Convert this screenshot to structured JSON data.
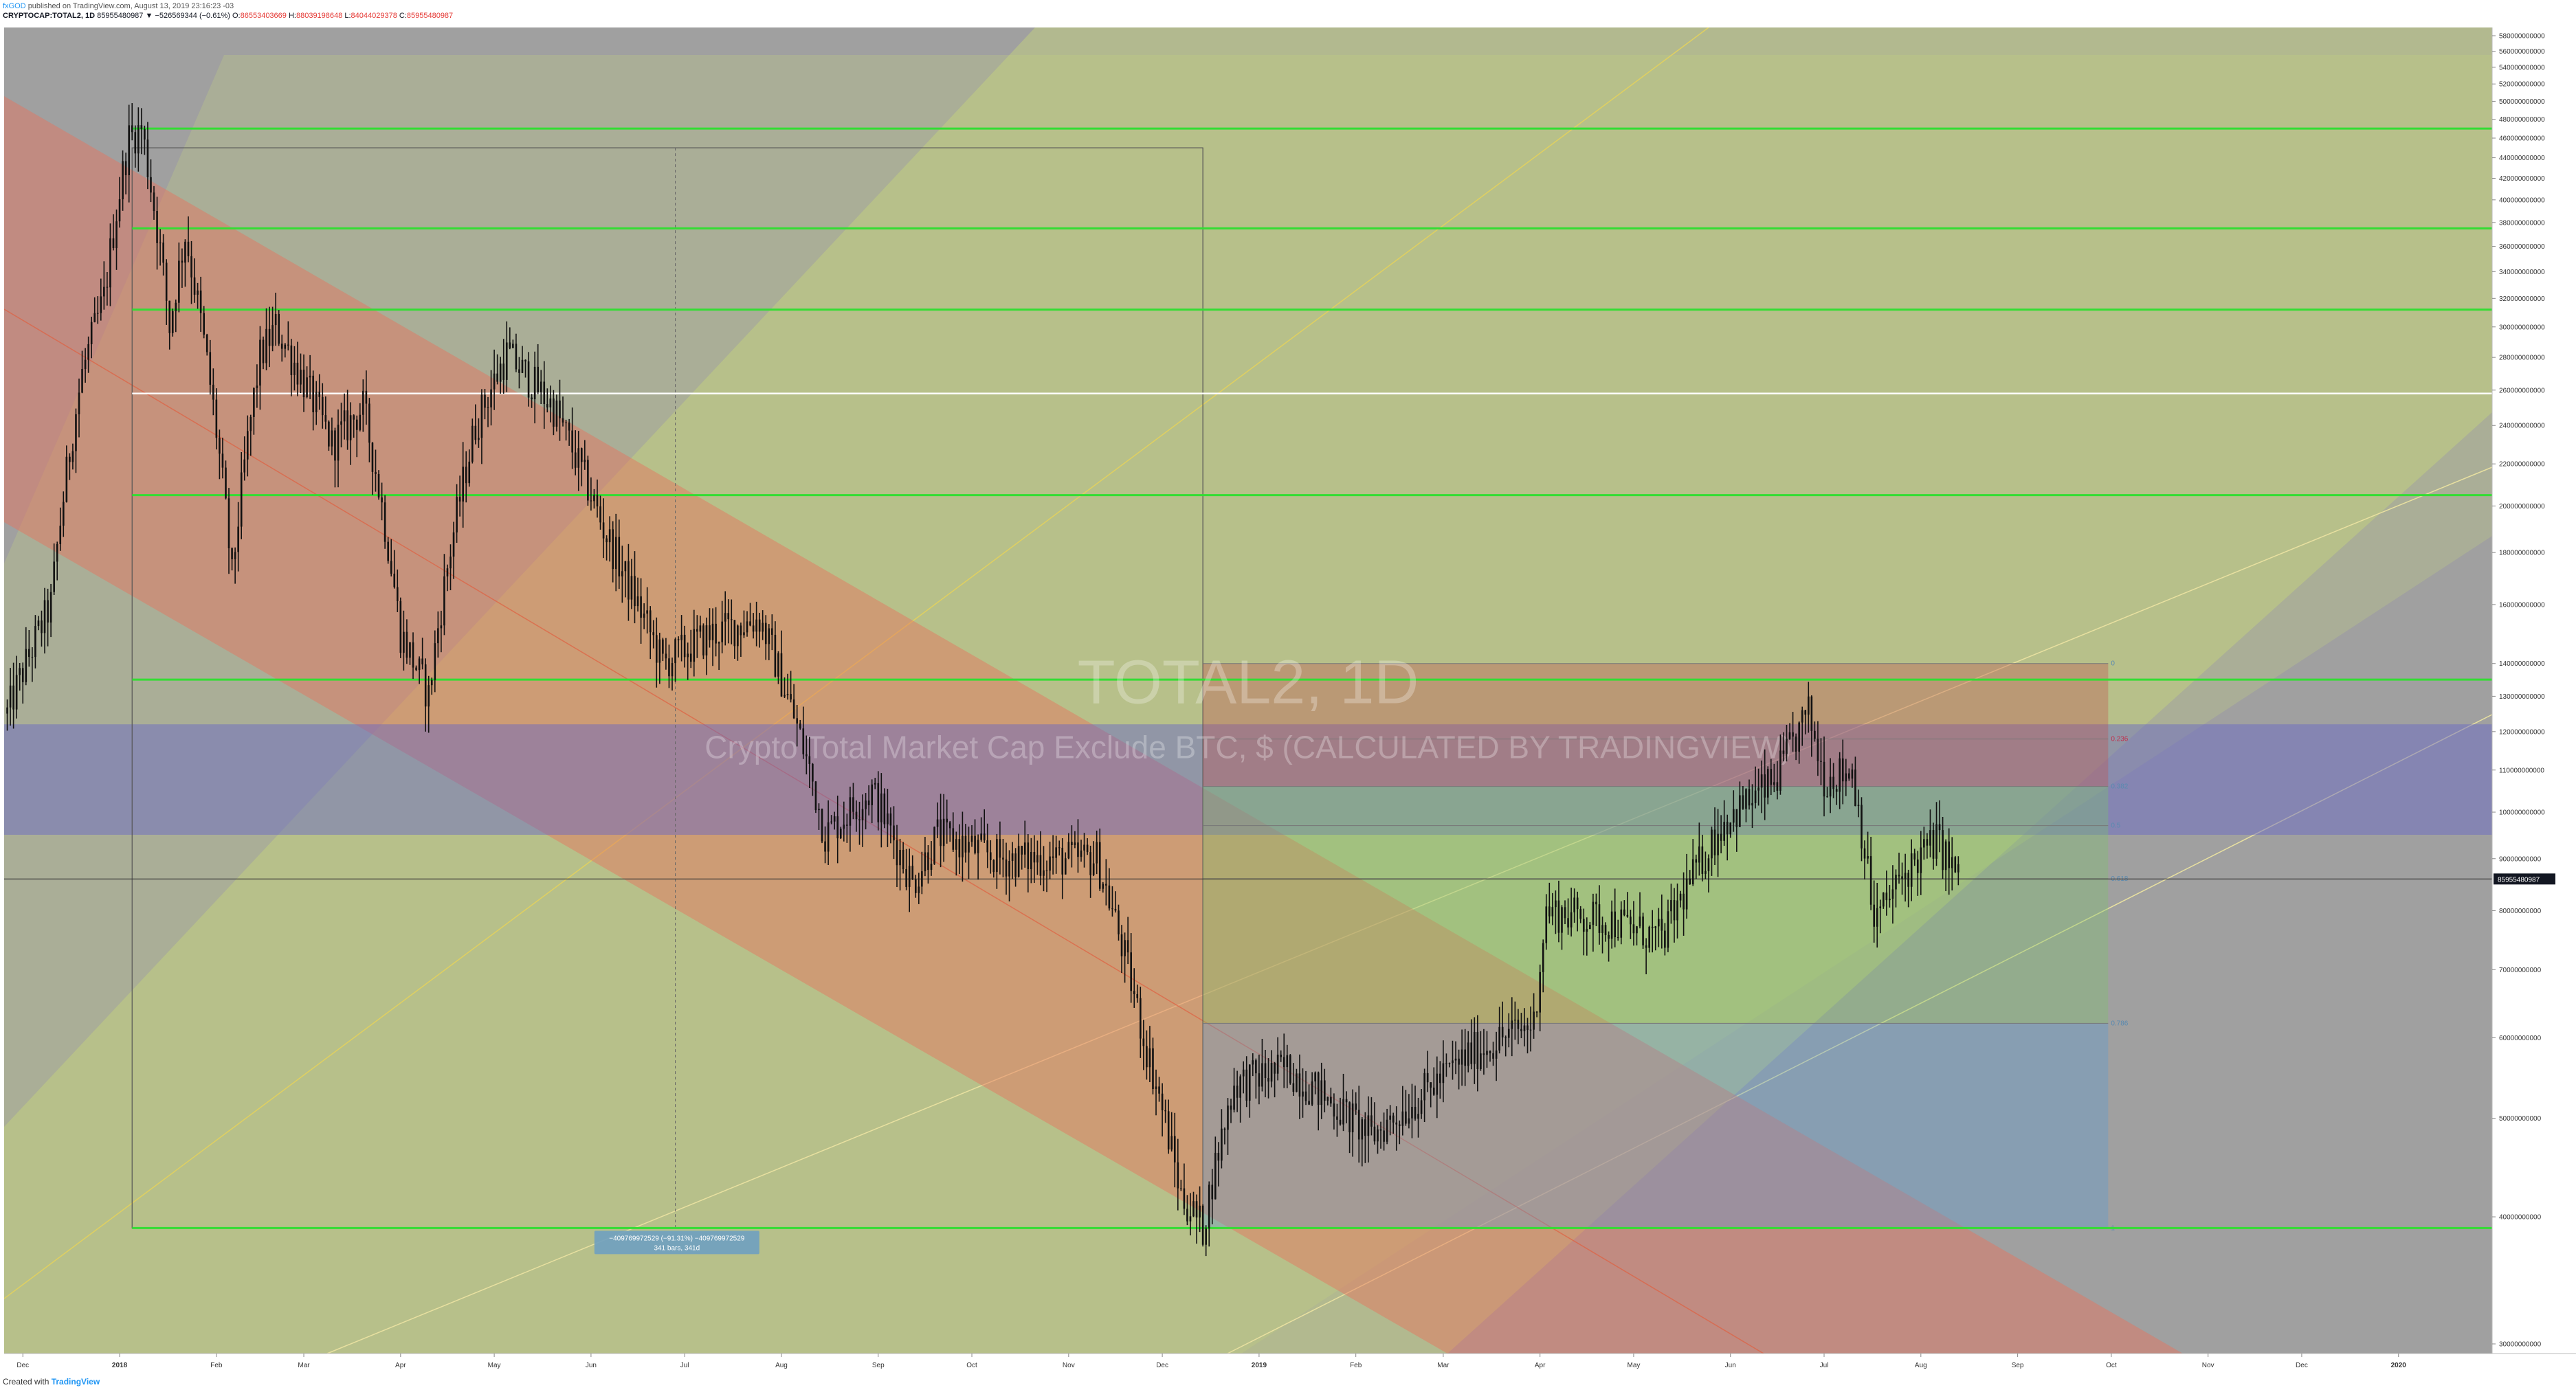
{
  "header": {
    "author": "fxGOD",
    "published": "published on TradingView.com, August 13, 2019 23:16:23 -03",
    "symbol": "CRYPTOCAP:TOTAL2, 1D",
    "price": "85955480987",
    "change": "▼ −526569344 (−0.61%)",
    "o_label": "O:",
    "o_value": "86553403669",
    "h_label": "H:",
    "h_value": "88039198648",
    "l_label": "L:",
    "l_value": "84044029378",
    "c_label": "C:",
    "c_value": "85955480987"
  },
  "watermark": {
    "title": "TOTAL2, 1D",
    "subtitle": "Crypto Total Market Cap Exclude BTC, $ (CALCULATED BY TRADINGVIEW)"
  },
  "footer": {
    "created_with": "Created with",
    "brand": "TradingView"
  },
  "colors": {
    "background": "#a0a0a0",
    "channel": "#e8705a",
    "pitchfork": "#c8d87a",
    "zone": "#6464c8",
    "hline": "#33dd33",
    "white_line": "#ffffff",
    "candle": "#111111",
    "fib_red": "#c0504d",
    "fib_green": "#7cc46a",
    "fib_blue": "#5a9bd4"
  },
  "chart_data": {
    "type": "candlestick",
    "y_scale": "log",
    "ylim": [
      300000000000,
      600000000000
    ],
    "y_ticks": [
      {
        "v": 580000000000,
        "label": "580000000000"
      },
      {
        "v": 560000000000,
        "label": "560000000000"
      },
      {
        "v": 540000000000,
        "label": "540000000000"
      },
      {
        "v": 520000000000,
        "label": "520000000000"
      },
      {
        "v": 500000000000,
        "label": "500000000000"
      },
      {
        "v": 480000000000,
        "label": "480000000000"
      },
      {
        "v": 460000000000,
        "label": "460000000000"
      },
      {
        "v": 440000000000,
        "label": "440000000000"
      },
      {
        "v": 420000000000,
        "label": "420000000000"
      },
      {
        "v": 400000000000,
        "label": "400000000000"
      },
      {
        "v": 380000000000,
        "label": "380000000000"
      },
      {
        "v": 360000000000,
        "label": "360000000000"
      },
      {
        "v": 340000000000,
        "label": "340000000000"
      },
      {
        "v": 320000000000,
        "label": "320000000000"
      },
      {
        "v": 300000000000,
        "label": "300000000000"
      },
      {
        "v": 280000000000,
        "label": "280000000000"
      },
      {
        "v": 260000000000,
        "label": "260000000000"
      },
      {
        "v": 240000000000,
        "label": "240000000000"
      },
      {
        "v": 220000000000,
        "label": "220000000000"
      },
      {
        "v": 200000000000,
        "label": "200000000000"
      },
      {
        "v": 180000000000,
        "label": "180000000000"
      },
      {
        "v": 160000000000,
        "label": "160000000000"
      },
      {
        "v": 140000000000,
        "label": "140000000000"
      },
      {
        "v": 130000000000,
        "label": "130000000000"
      },
      {
        "v": 120000000000,
        "label": "120000000000"
      },
      {
        "v": 110000000000,
        "label": "110000000000"
      },
      {
        "v": 100000000000,
        "label": "100000000000"
      },
      {
        "v": 90000000000,
        "label": "90000000000"
      },
      {
        "v": 80000000000,
        "label": "80000000000"
      },
      {
        "v": 70000000000,
        "label": "70000000000"
      },
      {
        "v": 60000000000,
        "label": "60000000000"
      },
      {
        "v": 50000000000,
        "label": "50000000000"
      },
      {
        "v": 40000000000,
        "label": "40000000000"
      },
      {
        "v": 30000000000,
        "label": "30000000000"
      }
    ],
    "x_ticks": [
      {
        "d": "2017-12-01",
        "label": "Dec"
      },
      {
        "d": "2018-01-01",
        "label": "2018"
      },
      {
        "d": "2018-02-01",
        "label": "Feb"
      },
      {
        "d": "2018-03-01",
        "label": "Mar"
      },
      {
        "d": "2018-04-01",
        "label": "Apr"
      },
      {
        "d": "2018-05-01",
        "label": "May"
      },
      {
        "d": "2018-06-01",
        "label": "Jun"
      },
      {
        "d": "2018-07-01",
        "label": "Jul"
      },
      {
        "d": "2018-08-01",
        "label": "Aug"
      },
      {
        "d": "2018-09-01",
        "label": "Sep"
      },
      {
        "d": "2018-10-01",
        "label": "Oct"
      },
      {
        "d": "2018-11-01",
        "label": "Nov"
      },
      {
        "d": "2018-12-01",
        "label": "Dec"
      },
      {
        "d": "2019-01-01",
        "label": "2019"
      },
      {
        "d": "2019-02-01",
        "label": "Feb"
      },
      {
        "d": "2019-03-01",
        "label": "Mar"
      },
      {
        "d": "2019-04-01",
        "label": "Apr"
      },
      {
        "d": "2019-05-01",
        "label": "May"
      },
      {
        "d": "2019-06-01",
        "label": "Jun"
      },
      {
        "d": "2019-07-01",
        "label": "Jul"
      },
      {
        "d": "2019-08-01",
        "label": "Aug"
      },
      {
        "d": "2019-09-01",
        "label": "Sep"
      },
      {
        "d": "2019-10-01",
        "label": "Oct"
      },
      {
        "d": "2019-11-01",
        "label": "Nov"
      },
      {
        "d": "2019-12-01",
        "label": "Dec"
      },
      {
        "d": "2020-01-01",
        "label": "2020"
      }
    ],
    "price_path": [
      [
        "2017-11-26",
        125
      ],
      [
        "2017-12-10",
        160
      ],
      [
        "2017-12-20",
        270
      ],
      [
        "2017-12-27",
        320
      ],
      [
        "2018-01-04",
        460
      ],
      [
        "2018-01-08",
        470
      ],
      [
        "2018-01-17",
        300
      ],
      [
        "2018-01-22",
        370
      ],
      [
        "2018-02-06",
        170
      ],
      [
        "2018-02-15",
        280
      ],
      [
        "2018-02-20",
        300
      ],
      [
        "2018-03-10",
        230
      ],
      [
        "2018-03-20",
        250
      ],
      [
        "2018-04-01",
        150
      ],
      [
        "2018-04-10",
        130
      ],
      [
        "2018-04-25",
        240
      ],
      [
        "2018-05-05",
        282
      ],
      [
        "2018-05-20",
        250
      ],
      [
        "2018-06-05",
        190
      ],
      [
        "2018-06-12",
        170
      ],
      [
        "2018-06-24",
        140
      ],
      [
        "2018-07-10",
        150
      ],
      [
        "2018-07-25",
        155
      ],
      [
        "2018-08-10",
        110
      ],
      [
        "2018-08-15",
        95
      ],
      [
        "2018-08-30",
        105
      ],
      [
        "2018-09-12",
        85
      ],
      [
        "2018-09-20",
        95
      ],
      [
        "2018-10-10",
        90
      ],
      [
        "2018-11-10",
        90
      ],
      [
        "2018-11-15",
        80
      ],
      [
        "2018-11-25",
        60
      ],
      [
        "2018-12-07",
        42
      ],
      [
        "2018-12-14",
        39
      ],
      [
        "2018-12-24",
        54
      ],
      [
        "2019-01-10",
        56
      ],
      [
        "2019-02-06",
        48
      ],
      [
        "2019-02-20",
        52
      ],
      [
        "2019-03-10",
        58
      ],
      [
        "2019-03-30",
        62
      ],
      [
        "2019-04-03",
        80
      ],
      [
        "2019-04-25",
        78
      ],
      [
        "2019-05-10",
        75
      ],
      [
        "2019-05-30",
        98
      ],
      [
        "2019-06-15",
        107
      ],
      [
        "2019-06-26",
        125
      ],
      [
        "2019-07-01",
        108
      ],
      [
        "2019-07-10",
        110
      ],
      [
        "2019-07-17",
        78
      ],
      [
        "2019-07-28",
        88
      ],
      [
        "2019-08-06",
        94
      ],
      [
        "2019-08-13",
        86
      ]
    ],
    "horizontal_lines": [
      {
        "v": 470,
        "color": "green"
      },
      {
        "v": 375,
        "color": "green"
      },
      {
        "v": 312,
        "color": "green"
      },
      {
        "v": 258,
        "color": "white"
      },
      {
        "v": 205,
        "color": "green"
      },
      {
        "v": 135,
        "color": "green"
      },
      {
        "v": 39,
        "color": "green"
      }
    ],
    "fib_levels": [
      {
        "level": "0",
        "v": 140
      },
      {
        "level": "0.236",
        "v": 118
      },
      {
        "level": "0.382",
        "v": 106
      },
      {
        "level": "0.5",
        "v": 97
      },
      {
        "level": "0.618",
        "v": 86
      },
      {
        "level": "0.786",
        "v": 62
      },
      {
        "level": "1",
        "v": 39
      }
    ],
    "measure_label": {
      "line1": "−409769972529 (−91.31%) −409769972529",
      "line2": "341 bars, 341d"
    },
    "last_price_label": "85955480987"
  }
}
